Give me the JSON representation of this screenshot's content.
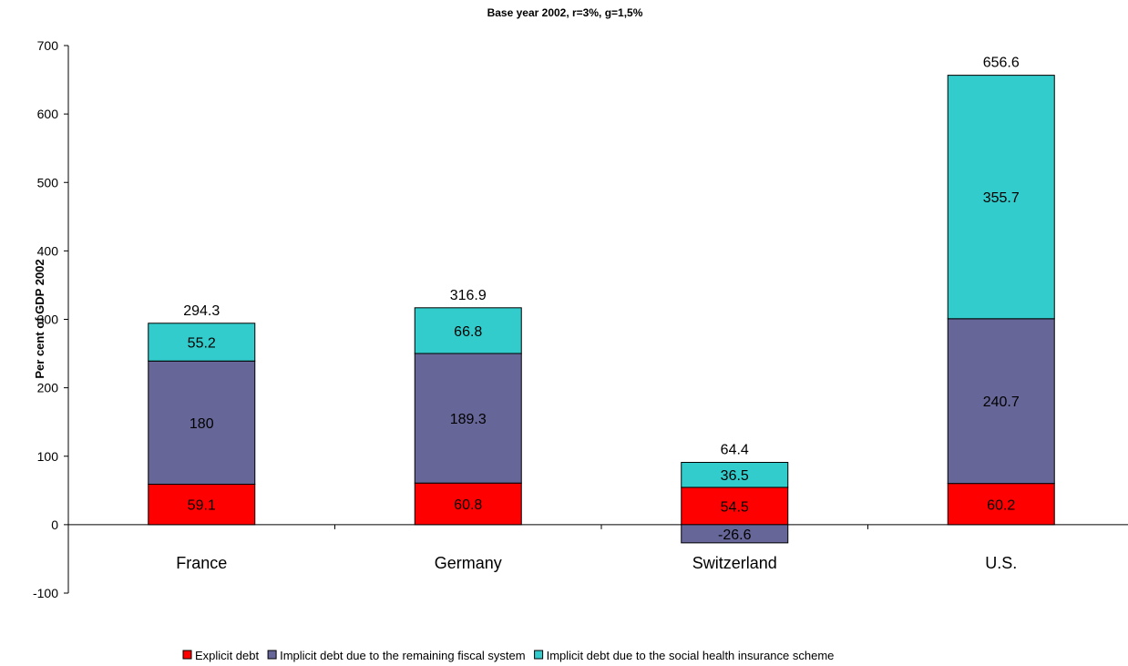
{
  "chart_data": {
    "type": "bar",
    "stacked": true,
    "title": "",
    "subtitle": "Base year 2002, r=3%, g=1,5%",
    "xlabel": "",
    "ylabel": "Per cent of GDP 2002",
    "ylim": [
      -100,
      700
    ],
    "yticks": [
      -100,
      0,
      100,
      200,
      300,
      400,
      500,
      600,
      700
    ],
    "grid": false,
    "legend_position": "bottom",
    "categories": [
      "France",
      "Germany",
      "Switzerland",
      "U.S."
    ],
    "series": [
      {
        "name": "Explicit debt",
        "color": "#ff0000",
        "values": [
          59.1,
          60.8,
          54.5,
          60.2
        ]
      },
      {
        "name": "Implicit debt due to the remaining fiscal system",
        "color": "#666699",
        "values": [
          180,
          189.3,
          -26.6,
          240.7
        ]
      },
      {
        "name": "Implicit debt due to the social health insurance scheme",
        "color": "#33cccc",
        "values": [
          55.2,
          66.8,
          36.5,
          355.7
        ]
      }
    ],
    "series_labels": [
      [
        "59.1",
        "60.8",
        "54.5",
        "60.2"
      ],
      [
        "180",
        "189.3",
        "-26.6",
        "240.7"
      ],
      [
        "55.2",
        "66.8",
        "36.5",
        "355.7"
      ]
    ],
    "totals": [
      294.3,
      316.9,
      64.4,
      656.6
    ],
    "total_labels": [
      "294.3",
      "316.9",
      "64.4",
      "656.6"
    ]
  }
}
